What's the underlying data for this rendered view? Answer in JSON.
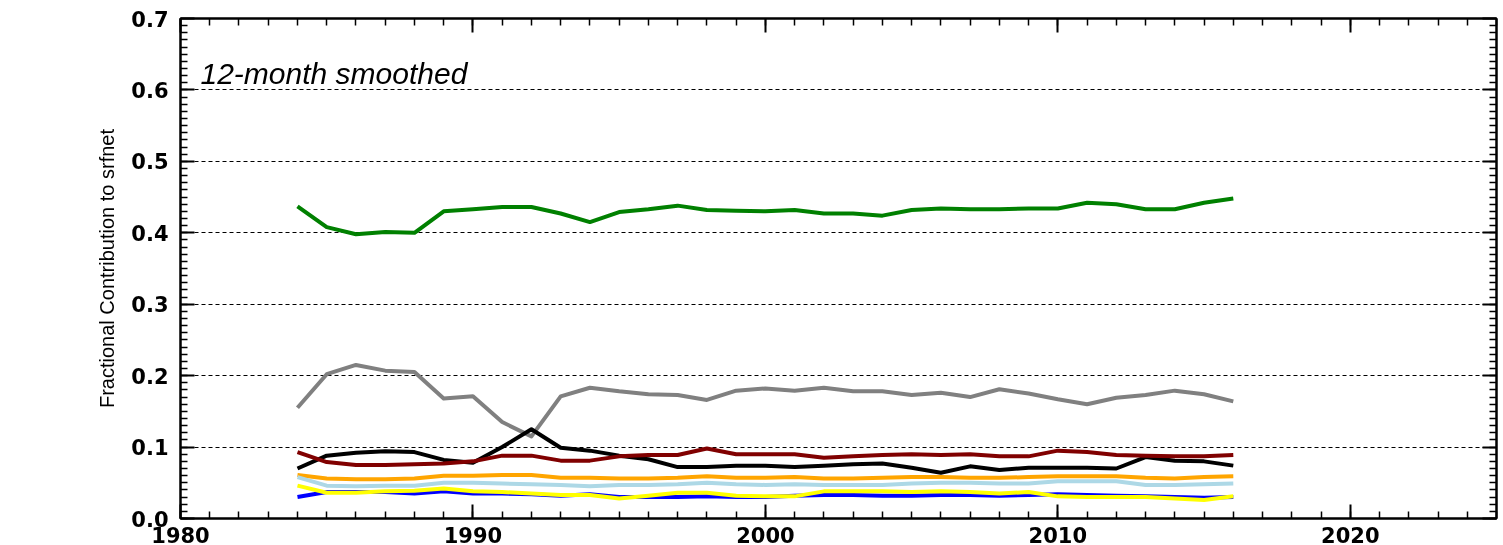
{
  "chart_data": {
    "type": "line",
    "ylabel": "Fractional Contribution to srfnet",
    "annotations": [
      "12-month smoothed"
    ],
    "x": [
      1984,
      1985,
      1986,
      1987,
      1988,
      1989,
      1990,
      1991,
      1992,
      1993,
      1994,
      1995,
      1996,
      1997,
      1998,
      1999,
      2000,
      2001,
      2002,
      2003,
      2004,
      2005,
      2006,
      2007,
      2008,
      2009,
      2010,
      2011,
      2012,
      2013,
      2014,
      2015,
      2016
    ],
    "xlim": [
      1980,
      2025
    ],
    "xticks": [
      1980,
      1990,
      2000,
      2010,
      2020
    ],
    "ylim": [
      0,
      0.7
    ],
    "yticks": [
      {
        "value": 0,
        "label": "0.0"
      },
      0.1,
      0.2,
      0.3,
      0.4,
      0.5,
      0.6,
      0.7
    ],
    "grid": "y",
    "marker": "none",
    "line_style": "solid",
    "series": [
      {
        "color": "#008000",
        "values": [
          0.437,
          0.408,
          0.398,
          0.401,
          0.4,
          0.43,
          0.433,
          0.436,
          0.436,
          0.427,
          0.415,
          0.429,
          0.433,
          0.438,
          0.432,
          0.431,
          0.43,
          0.432,
          0.427,
          0.427,
          0.424,
          0.432,
          0.434,
          0.433,
          0.433,
          0.434,
          0.434,
          0.442,
          0.44,
          0.433,
          0.433,
          0.442,
          0.448
        ]
      },
      {
        "color": "#808080",
        "values": [
          0.155,
          0.202,
          0.215,
          0.207,
          0.205,
          0.168,
          0.171,
          0.135,
          0.115,
          0.171,
          0.183,
          0.178,
          0.174,
          0.173,
          0.166,
          0.179,
          0.182,
          0.179,
          0.183,
          0.178,
          0.178,
          0.173,
          0.176,
          0.17,
          0.181,
          0.175,
          0.167,
          0.16,
          0.169,
          0.173,
          0.179,
          0.174,
          0.164
        ]
      },
      {
        "color": "#000000",
        "values": [
          0.07,
          0.088,
          0.092,
          0.094,
          0.093,
          0.082,
          0.078,
          0.1,
          0.125,
          0.099,
          0.095,
          0.088,
          0.083,
          0.072,
          0.072,
          0.074,
          0.074,
          0.072,
          0.074,
          0.076,
          0.077,
          0.071,
          0.064,
          0.073,
          0.068,
          0.071,
          0.071,
          0.071,
          0.07,
          0.086,
          0.081,
          0.08,
          0.074
        ]
      },
      {
        "color": "#800000",
        "values": [
          0.093,
          0.079,
          0.075,
          0.075,
          0.076,
          0.077,
          0.08,
          0.088,
          0.088,
          0.081,
          0.081,
          0.087,
          0.089,
          0.089,
          0.098,
          0.09,
          0.09,
          0.09,
          0.085,
          0.087,
          0.089,
          0.09,
          0.089,
          0.09,
          0.087,
          0.087,
          0.095,
          0.093,
          0.089,
          0.088,
          0.087,
          0.087,
          0.089
        ]
      },
      {
        "color": "#ffa500",
        "values": [
          0.061,
          0.056,
          0.055,
          0.055,
          0.056,
          0.06,
          0.06,
          0.061,
          0.061,
          0.057,
          0.057,
          0.056,
          0.056,
          0.057,
          0.059,
          0.057,
          0.057,
          0.058,
          0.056,
          0.056,
          0.057,
          0.058,
          0.058,
          0.057,
          0.057,
          0.058,
          0.059,
          0.059,
          0.059,
          0.057,
          0.056,
          0.058,
          0.059
        ]
      },
      {
        "color": "#add8e6",
        "values": [
          0.058,
          0.046,
          0.045,
          0.046,
          0.046,
          0.05,
          0.05,
          0.049,
          0.048,
          0.047,
          0.045,
          0.047,
          0.047,
          0.048,
          0.05,
          0.048,
          0.047,
          0.048,
          0.047,
          0.047,
          0.047,
          0.049,
          0.05,
          0.05,
          0.049,
          0.049,
          0.052,
          0.052,
          0.052,
          0.047,
          0.047,
          0.048,
          0.049
        ]
      },
      {
        "color": "#0000ff",
        "values": [
          0.03,
          0.037,
          0.037,
          0.037,
          0.035,
          0.038,
          0.035,
          0.035,
          0.034,
          0.032,
          0.034,
          0.03,
          0.03,
          0.03,
          0.031,
          0.03,
          0.03,
          0.032,
          0.033,
          0.033,
          0.032,
          0.032,
          0.033,
          0.033,
          0.032,
          0.033,
          0.034,
          0.033,
          0.032,
          0.031,
          0.03,
          0.029,
          0.03
        ]
      },
      {
        "color": "#ffff00",
        "values": [
          0.046,
          0.036,
          0.036,
          0.038,
          0.039,
          0.042,
          0.038,
          0.037,
          0.035,
          0.033,
          0.033,
          0.028,
          0.032,
          0.036,
          0.036,
          0.032,
          0.031,
          0.031,
          0.038,
          0.038,
          0.038,
          0.037,
          0.038,
          0.037,
          0.035,
          0.037,
          0.031,
          0.03,
          0.03,
          0.03,
          0.028,
          0.026,
          0.031
        ]
      }
    ]
  }
}
